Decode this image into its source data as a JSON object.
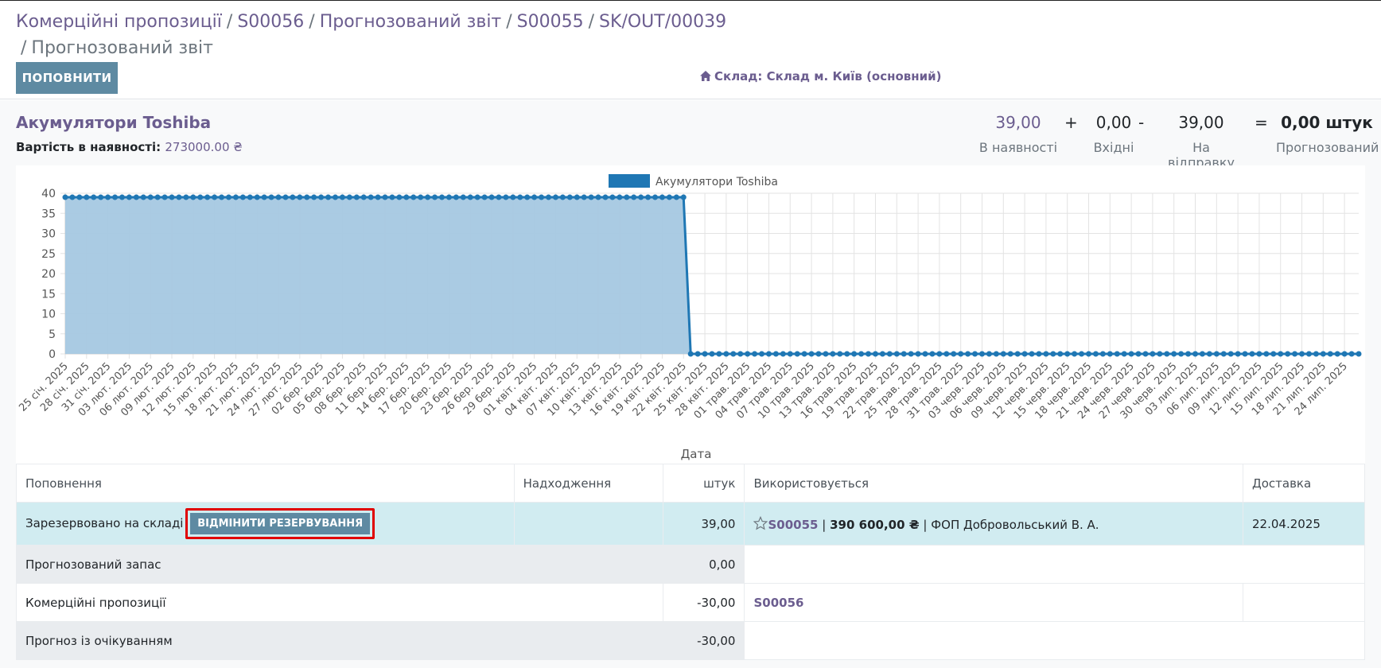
{
  "breadcrumb": {
    "items": [
      "Комерційні пропозиції",
      "S00056",
      "Прогнозований звіт",
      "S00055",
      "SK/OUT/00039"
    ],
    "active": "Прогнозований звіт",
    "separator": "/"
  },
  "toolbar": {
    "replenish_label": "ПОПОВНИТИ",
    "warehouse_label": "Склад: Склад м. Київ (основний)",
    "warehouse_icon": "home-icon"
  },
  "product": {
    "name": "Акумулятори Toshiba",
    "value_label": "Вартість в наявності:",
    "value_amount": "273000.00 ₴"
  },
  "summary": {
    "on_hand": "39,00",
    "on_hand_label": "В наявності",
    "plus": "+",
    "incoming": "0,00",
    "incoming_label": "Вхідні",
    "minus": "-",
    "outgoing": "39,00",
    "outgoing_label": "На відправку",
    "equals": "=",
    "forecast": "0,00 штук",
    "forecast_label": "Прогнозований"
  },
  "chart_data": {
    "type": "area",
    "title": "",
    "xlabel": "Дата",
    "ylabel": "",
    "ylim": [
      0,
      40
    ],
    "yticks": [
      0,
      5,
      10,
      15,
      20,
      25,
      30,
      35,
      40
    ],
    "grid": true,
    "legend_position": "top",
    "series": [
      {
        "name": "Акумулятори Toshiba",
        "color": "#1f77b4",
        "fill": "#a5c8e1",
        "start_date": "2025-01-25",
        "step_days": 1,
        "first_value": 39,
        "first_count": 88,
        "second_value": 0,
        "second_count": 95
      }
    ],
    "tick_labels": [
      "25 січ. 2025",
      "28 січ. 2025",
      "31 січ. 2025",
      "03 лют. 2025",
      "06 лют. 2025",
      "09 лют. 2025",
      "12 лют. 2025",
      "15 лют. 2025",
      "18 лют. 2025",
      "21 лют. 2025",
      "24 лют. 2025",
      "27 лют. 2025",
      "02 бер. 2025",
      "05 бер. 2025",
      "08 бер. 2025",
      "11 бер. 2025",
      "14 бер. 2025",
      "17 бер. 2025",
      "20 бер. 2025",
      "23 бер. 2025",
      "26 бер. 2025",
      "29 бер. 2025",
      "01 квіт. 2025",
      "04 квіт. 2025",
      "07 квіт. 2025",
      "10 квіт. 2025",
      "13 квіт. 2025",
      "16 квіт. 2025",
      "19 квіт. 2025",
      "22 квіт. 2025",
      "25 квіт. 2025",
      "28 квіт. 2025",
      "01 трав. 2025",
      "04 трав. 2025",
      "07 трав. 2025",
      "10 трав. 2025",
      "13 трав. 2025",
      "16 трав. 2025",
      "19 трав. 2025",
      "22 трав. 2025",
      "25 трав. 2025",
      "28 трав. 2025",
      "31 трав. 2025",
      "03 черв. 2025",
      "06 черв. 2025",
      "09 черв. 2025",
      "12 черв. 2025",
      "15 черв. 2025",
      "18 черв. 2025",
      "21 черв. 2025",
      "24 черв. 2025",
      "27 черв. 2025",
      "30 черв. 2025",
      "03 лип. 2025",
      "06 лип. 2025",
      "09 лип. 2025",
      "12 лип. 2025",
      "15 лип. 2025",
      "18 лип. 2025",
      "21 лип. 2025",
      "24 лип. 2025"
    ]
  },
  "table": {
    "headers": [
      "Поповнення",
      "Надходження",
      "штук",
      "Використовується",
      "Доставка"
    ],
    "reserved_row": {
      "label": "Зарезервовано на складі",
      "unreserve_label": "ВІДМІНИТИ РЕЗЕРВУВАННЯ",
      "qty": "39,00",
      "order": "S00055",
      "amount": "390 600,00 ₴",
      "partner": "ФОП Добровольський В. А.",
      "pipe": "|",
      "date": "22.04.2025"
    },
    "forecast_row": {
      "label": "Прогнозований запас",
      "qty": "0,00"
    },
    "quotations_row": {
      "label": "Комерційні пропозиції",
      "qty": "-30,00",
      "order": "S00056"
    },
    "pending_row": {
      "label": "Прогноз із очікуванням",
      "qty": "-30,00"
    }
  }
}
